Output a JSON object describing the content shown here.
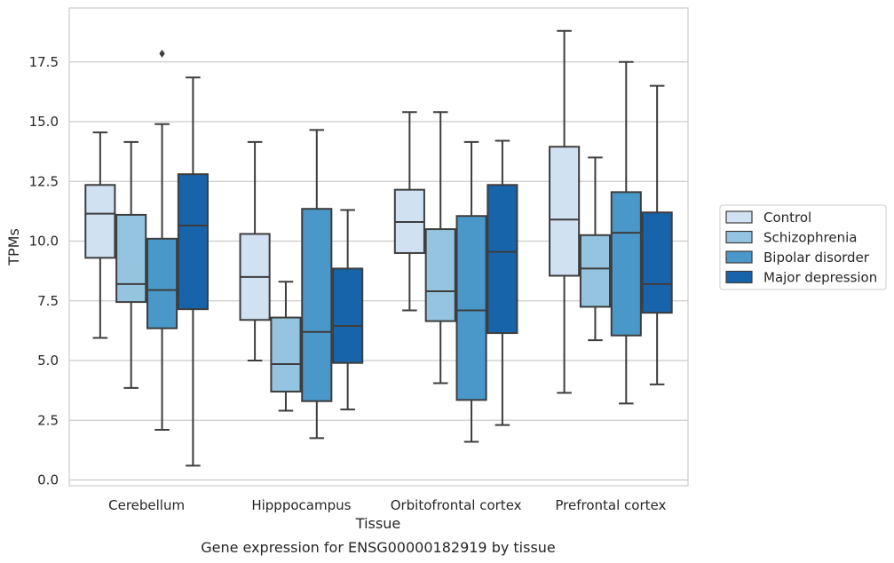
{
  "chart_data": {
    "type": "box",
    "title": "",
    "caption": "Gene expression for ENSG00000182919 by tissue",
    "xlabel": "Tissue",
    "ylabel": "TPMs",
    "ylim": [
      -0.3,
      19.6
    ],
    "yticks": [
      "0.0",
      "2.5",
      "5.0",
      "7.5",
      "10.0",
      "12.5",
      "15.0",
      "17.5"
    ],
    "ytick_values": [
      0,
      2.5,
      5,
      7.5,
      10,
      12.5,
      15,
      17.5
    ],
    "grid": "horizontal",
    "legend_position": "right",
    "categories": [
      "Cerebellum",
      "Hipppocampus",
      "Orbitofrontal cortex",
      "Prefrontal cortex"
    ],
    "series": [
      {
        "name": "Control",
        "color": "#d0e1f2",
        "boxes": [
          {
            "whisker_low": 5.95,
            "q1": 9.3,
            "median": 11.15,
            "q3": 12.35,
            "whisker_high": 14.55,
            "outliers": []
          },
          {
            "whisker_low": 5.0,
            "q1": 6.7,
            "median": 8.5,
            "q3": 10.3,
            "whisker_high": 14.15,
            "outliers": []
          },
          {
            "whisker_low": 7.1,
            "q1": 9.5,
            "median": 10.8,
            "q3": 12.15,
            "whisker_high": 15.4,
            "outliers": []
          },
          {
            "whisker_low": 3.65,
            "q1": 8.55,
            "median": 10.9,
            "q3": 13.95,
            "whisker_high": 18.8,
            "outliers": []
          }
        ]
      },
      {
        "name": "Schizophrenia",
        "color": "#94c4df",
        "boxes": [
          {
            "whisker_low": 3.85,
            "q1": 7.45,
            "median": 8.2,
            "q3": 11.1,
            "whisker_high": 14.15,
            "outliers": []
          },
          {
            "whisker_low": 2.9,
            "q1": 3.7,
            "median": 4.85,
            "q3": 6.8,
            "whisker_high": 8.3,
            "outliers": []
          },
          {
            "whisker_low": 4.05,
            "q1": 6.65,
            "median": 7.9,
            "q3": 10.5,
            "whisker_high": 15.4,
            "outliers": []
          },
          {
            "whisker_low": 5.85,
            "q1": 7.25,
            "median": 8.85,
            "q3": 10.25,
            "whisker_high": 13.5,
            "outliers": []
          }
        ]
      },
      {
        "name": "Bipolar disorder",
        "color": "#4a98c9",
        "boxes": [
          {
            "whisker_low": 2.1,
            "q1": 6.35,
            "median": 7.95,
            "q3": 10.1,
            "whisker_high": 14.9,
            "outliers": [
              17.85
            ]
          },
          {
            "whisker_low": 1.75,
            "q1": 3.3,
            "median": 6.2,
            "q3": 11.35,
            "whisker_high": 14.65,
            "outliers": []
          },
          {
            "whisker_low": 1.6,
            "q1": 3.35,
            "median": 7.1,
            "q3": 11.05,
            "whisker_high": 14.15,
            "outliers": []
          },
          {
            "whisker_low": 3.2,
            "q1": 6.05,
            "median": 10.35,
            "q3": 12.05,
            "whisker_high": 17.5,
            "outliers": []
          }
        ]
      },
      {
        "name": "Major depression",
        "color": "#1764ab",
        "boxes": [
          {
            "whisker_low": 0.6,
            "q1": 7.15,
            "median": 10.65,
            "q3": 12.8,
            "whisker_high": 16.85,
            "outliers": []
          },
          {
            "whisker_low": 2.95,
            "q1": 4.9,
            "median": 6.45,
            "q3": 8.85,
            "whisker_high": 11.3,
            "outliers": []
          },
          {
            "whisker_low": 2.3,
            "q1": 6.15,
            "median": 9.55,
            "q3": 12.35,
            "whisker_high": 14.2,
            "outliers": []
          },
          {
            "whisker_low": 4.0,
            "q1": 7.0,
            "median": 8.2,
            "q3": 11.2,
            "whisker_high": 16.5,
            "outliers": []
          }
        ]
      }
    ]
  }
}
